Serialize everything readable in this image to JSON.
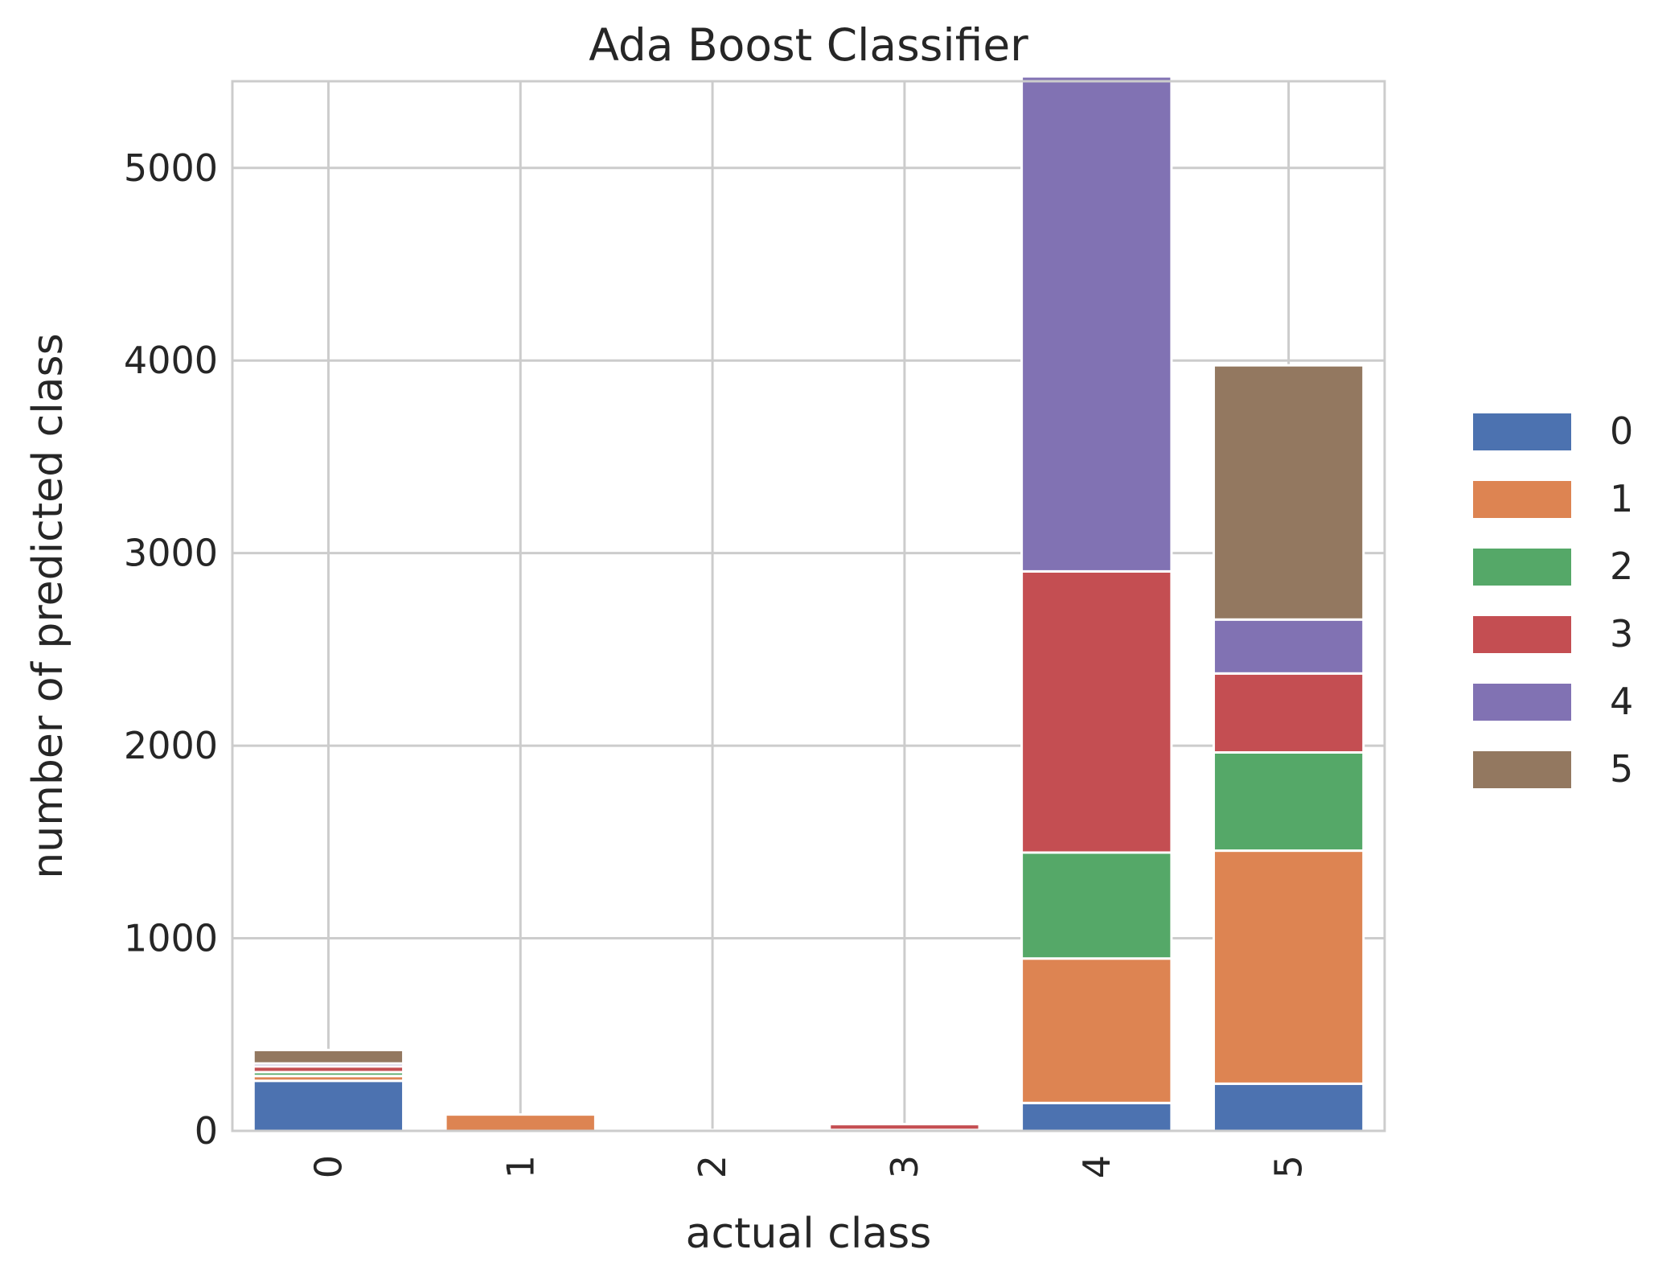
{
  "chart_data": {
    "type": "bar",
    "stacked": true,
    "title": "Ada Boost Classifier",
    "xlabel": "actual class",
    "ylabel": "number of predicted class",
    "categories": [
      "0",
      "1",
      "2",
      "3",
      "4",
      "5"
    ],
    "ylim": [
      0,
      5450
    ],
    "yticks": [
      0,
      1000,
      2000,
      3000,
      4000,
      5000
    ],
    "grid": true,
    "legend_position": "right",
    "series": [
      {
        "name": "0",
        "color": "#4c72b0",
        "values": [
          260,
          0,
          0,
          0,
          145,
          245
        ]
      },
      {
        "name": "1",
        "color": "#dd8452",
        "values": [
          25,
          85,
          5,
          5,
          750,
          1210
        ]
      },
      {
        "name": "2",
        "color": "#55a868",
        "values": [
          20,
          0,
          0,
          0,
          550,
          510
        ]
      },
      {
        "name": "3",
        "color": "#c44e52",
        "values": [
          30,
          0,
          0,
          30,
          1460,
          410
        ]
      },
      {
        "name": "4",
        "color": "#8172b3",
        "values": [
          15,
          0,
          0,
          0,
          2570,
          280
        ]
      },
      {
        "name": "5",
        "color": "#937860",
        "values": [
          70,
          0,
          0,
          0,
          0,
          1320
        ]
      }
    ]
  }
}
